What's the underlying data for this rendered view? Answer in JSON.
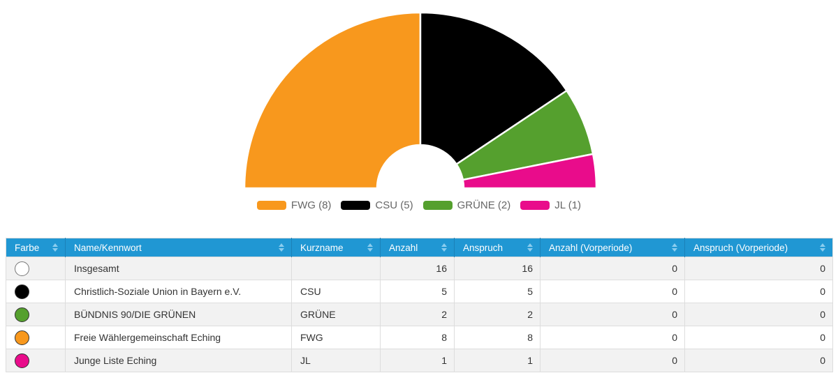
{
  "colors": {
    "header_bg": "#2097D3",
    "header_text": "#FFFFFF",
    "header_divider": "#1B81B8",
    "sort_icon": "#8BCDEF",
    "stripe_bg": "#F2F2F2",
    "row_bg": "#FFFFFF",
    "table_border": "#DDDDDD",
    "cell_text": "#333333",
    "legend_text": "#666666",
    "slice_gap": "#FFFFFF"
  },
  "chart_data": {
    "type": "pie",
    "variant": "half-donut",
    "start_angle_deg": 180,
    "end_angle_deg": 0,
    "total_seats": 16,
    "legend_position": "bottom",
    "series": [
      {
        "name": "FWG",
        "value": 8,
        "color": "#F8981D",
        "legend_label": "FWG (8)"
      },
      {
        "name": "CSU",
        "value": 5,
        "color": "#000000",
        "legend_label": "CSU (5)"
      },
      {
        "name": "GRÜNE",
        "value": 2,
        "color": "#55A02E",
        "legend_label": "GRÜNE (2)"
      },
      {
        "name": "JL",
        "value": 1,
        "color": "#E90C8B",
        "legend_label": "JL (1)"
      }
    ]
  },
  "table": {
    "columns": [
      {
        "label": "Farbe",
        "sortable": true
      },
      {
        "label": "Name/Kennwort",
        "sortable": true
      },
      {
        "label": "Kurzname",
        "sortable": true
      },
      {
        "label": "Anzahl",
        "sortable": true
      },
      {
        "label": "Anspruch",
        "sortable": true
      },
      {
        "label": "Anzahl (Vorperiode)",
        "sortable": true
      },
      {
        "label": "Anspruch (Vorperiode)",
        "sortable": true
      }
    ],
    "rows": [
      {
        "color": "#FFFFFF",
        "swatch_border": "#777777",
        "name": "Insgesamt",
        "kurzname": "",
        "anzahl": "16",
        "anspruch": "16",
        "anzahl_vorperiode": "0",
        "anspruch_vorperiode": "0"
      },
      {
        "color": "#000000",
        "swatch_border": "#333333",
        "name": "Christlich-Soziale Union in Bayern e.V.",
        "kurzname": "CSU",
        "anzahl": "5",
        "anspruch": "5",
        "anzahl_vorperiode": "0",
        "anspruch_vorperiode": "0"
      },
      {
        "color": "#55A02E",
        "swatch_border": "#333333",
        "name": "BÜNDNIS 90/DIE GRÜNEN",
        "kurzname": "GRÜNE",
        "anzahl": "2",
        "anspruch": "2",
        "anzahl_vorperiode": "0",
        "anspruch_vorperiode": "0"
      },
      {
        "color": "#F8981D",
        "swatch_border": "#333333",
        "name": "Freie Wählergemeinschaft Eching",
        "kurzname": "FWG",
        "anzahl": "8",
        "anspruch": "8",
        "anzahl_vorperiode": "0",
        "anspruch_vorperiode": "0"
      },
      {
        "color": "#E90C8B",
        "swatch_border": "#333333",
        "name": "Junge Liste Eching",
        "kurzname": "JL",
        "anzahl": "1",
        "anspruch": "1",
        "anzahl_vorperiode": "0",
        "anspruch_vorperiode": "0"
      }
    ]
  }
}
